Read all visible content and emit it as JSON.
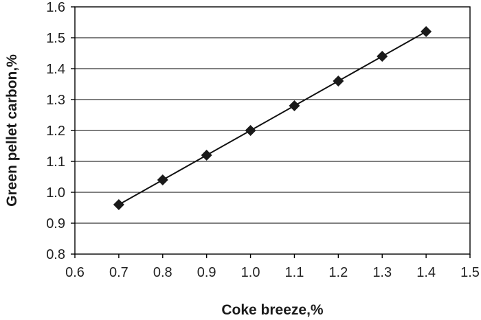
{
  "chart_data": {
    "type": "line",
    "title": "",
    "xlabel": "Coke breeze,%",
    "ylabel": "Green pellet carbon,%",
    "xlim": [
      0.6,
      1.5
    ],
    "ylim": [
      0.8,
      1.6
    ],
    "x_ticks": [
      "0.6",
      "0.7",
      "0.8",
      "0.9",
      "1.0",
      "1.1",
      "1.2",
      "1.3",
      "1.4",
      "1.5"
    ],
    "y_ticks": [
      "0.8",
      "0.9",
      "1.0",
      "1.1",
      "1.2",
      "1.3",
      "1.4",
      "1.5",
      "1.6"
    ],
    "grid": "horizontal",
    "legend": "none",
    "marker": "diamond",
    "colors": {
      "line": "#111111",
      "marker": "#1a1a1a",
      "grid": "#000000"
    },
    "series": [
      {
        "x": [
          0.7,
          0.8,
          0.9,
          1.0,
          1.1,
          1.2,
          1.3,
          1.4
        ],
        "values": [
          0.96,
          1.04,
          1.12,
          1.2,
          1.28,
          1.36,
          1.44,
          1.52
        ]
      }
    ]
  }
}
